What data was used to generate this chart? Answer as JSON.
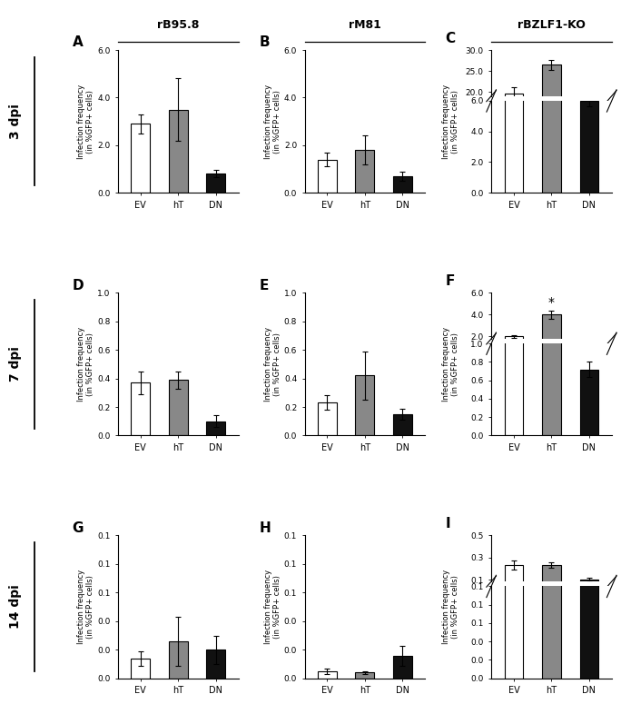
{
  "panels": [
    {
      "label": "A",
      "col_idx": 0,
      "row_idx": 0,
      "values": [
        2.9,
        3.5,
        0.8
      ],
      "errors": [
        0.4,
        1.3,
        0.15
      ],
      "ylim": [
        0,
        6.0
      ],
      "yticks": [
        0.0,
        2.0,
        4.0,
        6.0
      ],
      "broken_axis": false,
      "asterisk": false
    },
    {
      "label": "B",
      "col_idx": 1,
      "row_idx": 0,
      "values": [
        1.4,
        1.8,
        0.7
      ],
      "errors": [
        0.3,
        0.6,
        0.2
      ],
      "ylim": [
        0,
        6.0
      ],
      "yticks": [
        0.0,
        2.0,
        4.0,
        6.0
      ],
      "broken_axis": false,
      "asterisk": false
    },
    {
      "label": "C",
      "col_idx": 2,
      "row_idx": 0,
      "values": [
        19.5,
        26.5,
        6.0
      ],
      "errors": [
        1.5,
        1.2,
        0.35
      ],
      "ylim_lower": [
        0.0,
        6.0
      ],
      "ylim_upper": [
        19.0,
        30.0
      ],
      "yticks_lower": [
        0.0,
        2.0,
        4.0,
        6.0
      ],
      "yticks_upper": [
        20.0,
        25.0,
        30.0
      ],
      "broken_axis": true,
      "asterisk": false
    },
    {
      "label": "D",
      "col_idx": 0,
      "row_idx": 1,
      "values": [
        0.37,
        0.39,
        0.1
      ],
      "errors": [
        0.08,
        0.06,
        0.04
      ],
      "ylim": [
        0,
        1.0
      ],
      "yticks": [
        0.0,
        0.2,
        0.4,
        0.6,
        0.8,
        1.0
      ],
      "broken_axis": false,
      "asterisk": false
    },
    {
      "label": "E",
      "col_idx": 1,
      "row_idx": 1,
      "values": [
        0.23,
        0.42,
        0.15
      ],
      "errors": [
        0.05,
        0.17,
        0.04
      ],
      "ylim": [
        0,
        1.0
      ],
      "yticks": [
        0.0,
        0.2,
        0.4,
        0.6,
        0.8,
        1.0
      ],
      "broken_axis": false,
      "asterisk": false
    },
    {
      "label": "F",
      "col_idx": 2,
      "row_idx": 1,
      "values": [
        2.0,
        4.0,
        0.72
      ],
      "errors": [
        0.1,
        0.4,
        0.08
      ],
      "ylim_lower": [
        0.0,
        1.0
      ],
      "ylim_upper": [
        1.8,
        6.0
      ],
      "yticks_lower": [
        0.0,
        0.2,
        0.4,
        0.6,
        0.8,
        1.0
      ],
      "yticks_upper": [
        2.0,
        4.0,
        6.0
      ],
      "broken_axis": true,
      "asterisk": true
    },
    {
      "label": "G",
      "col_idx": 0,
      "row_idx": 2,
      "values": [
        0.014,
        0.026,
        0.02
      ],
      "errors": [
        0.005,
        0.017,
        0.01
      ],
      "ylim": [
        0,
        0.1
      ],
      "yticks": [
        0.0,
        0.02,
        0.04,
        0.06,
        0.08,
        0.1
      ],
      "broken_axis": false,
      "asterisk": false
    },
    {
      "label": "H",
      "col_idx": 1,
      "row_idx": 2,
      "values": [
        0.005,
        0.004,
        0.016
      ],
      "errors": [
        0.002,
        0.001,
        0.007
      ],
      "ylim": [
        0,
        0.1
      ],
      "yticks": [
        0.0,
        0.02,
        0.04,
        0.06,
        0.08,
        0.1
      ],
      "broken_axis": false,
      "asterisk": false
    },
    {
      "label": "I",
      "col_idx": 2,
      "row_idx": 2,
      "values": [
        0.25,
        0.25,
        0.15
      ],
      "errors": [
        0.03,
        0.02,
        0.015
      ],
      "ylim_lower": [
        0.0,
        0.1
      ],
      "ylim_upper": [
        0.14,
        0.45
      ],
      "yticks_lower": [
        0.0,
        0.02,
        0.04,
        0.06,
        0.08,
        0.1
      ],
      "yticks_upper": [
        0.15,
        0.3,
        0.45
      ],
      "broken_axis": true,
      "asterisk": false
    }
  ],
  "bar_colors": [
    "white",
    "#888888",
    "#111111"
  ],
  "bar_edgecolor": "black",
  "categories": [
    "EV",
    "hT",
    "DN"
  ],
  "ylabel": "Infection frequency\n(in %GFP+ cells)",
  "col_titles": [
    "rB95.8",
    "rM81",
    "rBZLF1-KO"
  ],
  "row_labels": [
    "3 dpi",
    "7 dpi",
    "14 dpi"
  ]
}
